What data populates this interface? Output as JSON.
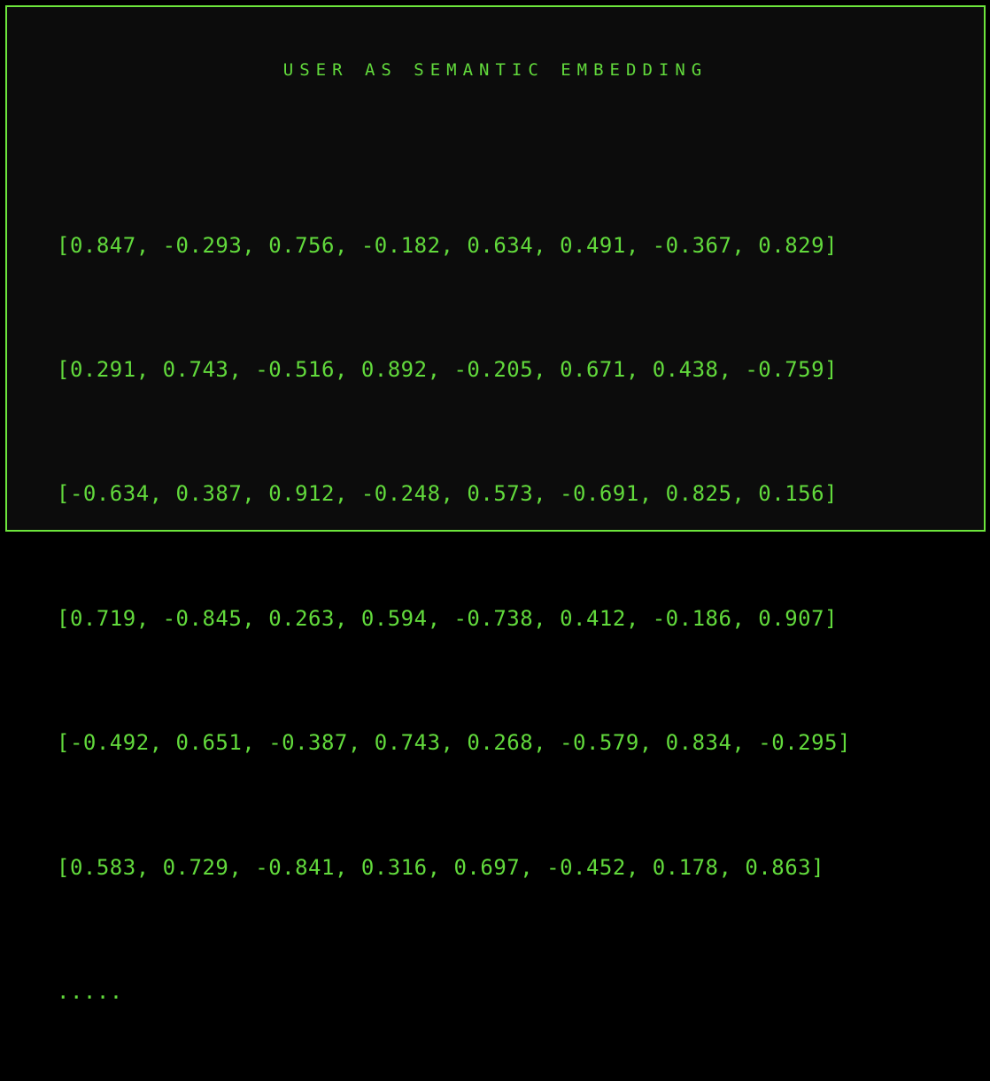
{
  "panel": {
    "title": "USER AS SEMANTIC EMBEDDING",
    "rows": [
      "[0.847, -0.293, 0.756, -0.182, 0.634, 0.491, -0.367, 0.829]",
      "[0.291, 0.743, -0.516, 0.892, -0.205, 0.671, 0.438, -0.759]",
      "[-0.634, 0.387, 0.912, -0.248, 0.573, -0.691, 0.825, 0.156]",
      "[0.719, -0.845, 0.263, 0.594, -0.738, 0.412, -0.186, 0.907]",
      "[-0.492, 0.651, -0.387, 0.743, 0.268, -0.579, 0.834, -0.295]",
      "[0.583, 0.729, -0.841, 0.316, 0.697, -0.452, 0.178, 0.863]"
    ],
    "vectors": [
      [
        0.847,
        -0.293,
        0.756,
        -0.182,
        0.634,
        0.491,
        -0.367,
        0.829
      ],
      [
        0.291,
        0.743,
        -0.516,
        0.892,
        -0.205,
        0.671,
        0.438,
        -0.759
      ],
      [
        -0.634,
        0.387,
        0.912,
        -0.248,
        0.573,
        -0.691,
        0.825,
        0.156
      ],
      [
        0.719,
        -0.845,
        0.263,
        0.594,
        -0.738,
        0.412,
        -0.186,
        0.907
      ],
      [
        -0.492,
        0.651,
        -0.387,
        0.743,
        0.268,
        -0.579,
        0.834,
        -0.295
      ],
      [
        0.583,
        0.729,
        -0.841,
        0.316,
        0.697,
        -0.452,
        0.178,
        0.863
      ]
    ],
    "ellipsis": ".....",
    "colors": {
      "page_background": "#000000",
      "panel_background": "#0c0c0c",
      "border_green": "#6de53c",
      "text_green": "#62da3c"
    }
  }
}
